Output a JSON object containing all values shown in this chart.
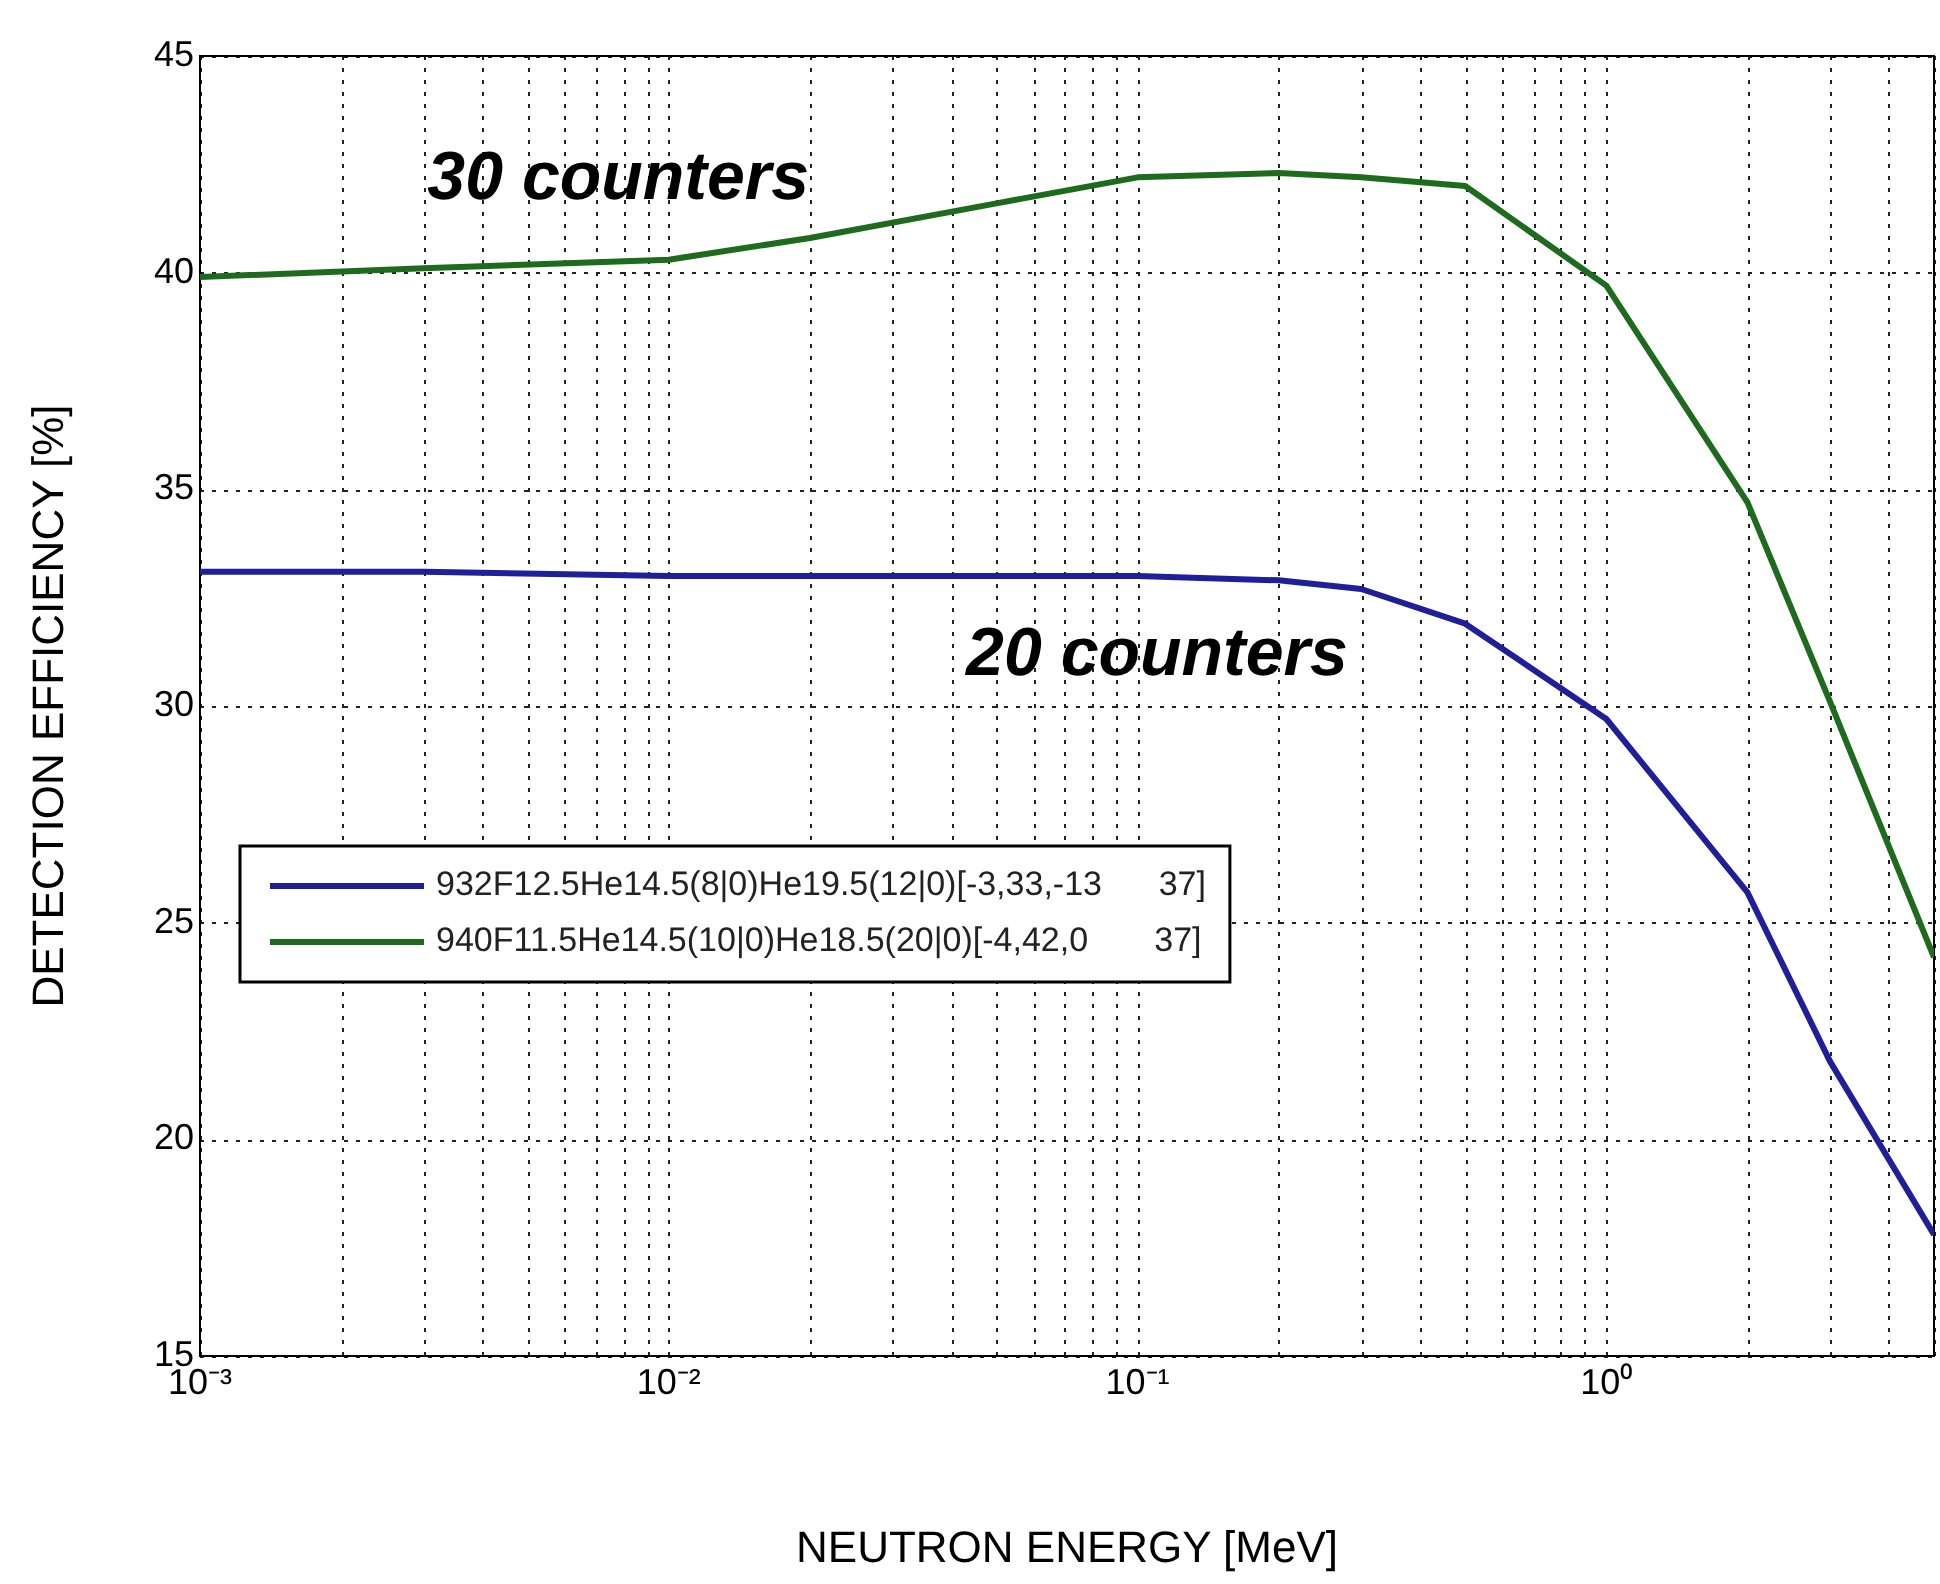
{
  "chart_data": {
    "type": "line",
    "xlabel": "NEUTRON ENERGY [MeV]",
    "ylabel": "DETECTION EFFICIENCY [%]",
    "log": "x",
    "grid": true,
    "legend": "left",
    "line_style": "solid",
    "marker": "none",
    "xlim": [
      0.001,
      5
    ],
    "ylim": [
      15,
      45
    ],
    "xticks": [
      {
        "value": 0.001,
        "label": "10⁻³"
      },
      {
        "value": 0.002,
        "label": null
      },
      {
        "value": 0.003,
        "label": null
      },
      {
        "value": 0.004,
        "label": null
      },
      {
        "value": 0.005,
        "label": null
      },
      {
        "value": 0.006,
        "label": null
      },
      {
        "value": 0.007,
        "label": null
      },
      {
        "value": 0.008,
        "label": null
      },
      {
        "value": 0.009,
        "label": null
      },
      {
        "value": 0.01,
        "label": "10⁻²"
      },
      {
        "value": 0.02,
        "label": null
      },
      {
        "value": 0.03,
        "label": null
      },
      {
        "value": 0.04,
        "label": null
      },
      {
        "value": 0.05,
        "label": null
      },
      {
        "value": 0.06,
        "label": null
      },
      {
        "value": 0.07,
        "label": null
      },
      {
        "value": 0.08,
        "label": null
      },
      {
        "value": 0.09,
        "label": null
      },
      {
        "value": 0.1,
        "label": "10⁻¹"
      },
      {
        "value": 0.2,
        "label": null
      },
      {
        "value": 0.3,
        "label": null
      },
      {
        "value": 0.4,
        "label": null
      },
      {
        "value": 0.5,
        "label": null
      },
      {
        "value": 0.6,
        "label": null
      },
      {
        "value": 0.7,
        "label": null
      },
      {
        "value": 0.8,
        "label": null
      },
      {
        "value": 0.9,
        "label": null
      },
      {
        "value": 1,
        "label": "10⁰"
      },
      {
        "value": 2,
        "label": null
      },
      {
        "value": 3,
        "label": null
      },
      {
        "value": 4,
        "label": null
      },
      {
        "value": 5,
        "label": null
      }
    ],
    "yticks": [
      15,
      20,
      25,
      30,
      35,
      40,
      45
    ],
    "x": [
      0.001,
      0.003,
      0.01,
      0.02,
      0.05,
      0.1,
      0.2,
      0.3,
      0.5,
      1,
      2,
      3,
      5
    ],
    "series": [
      {
        "name": "932F12.5He14.5(8|0)He19.5(12|0)[-3,33,-13      37]",
        "color": "#1f1f9a",
        "values": [
          33.1,
          33.1,
          33.0,
          33.0,
          33.0,
          33.0,
          32.9,
          32.7,
          31.9,
          29.7,
          25.7,
          21.8,
          17.8
        ]
      },
      {
        "name": "940F11.5He14.5(10|0)He18.5(20|0)[-4,42,0       37]",
        "color": "#1e6b1e",
        "values": [
          39.9,
          40.1,
          40.3,
          40.8,
          41.6,
          42.2,
          42.3,
          42.2,
          42.0,
          39.7,
          34.7,
          30.1,
          24.2
        ]
      }
    ],
    "annotations": [
      {
        "text": "30 counters",
        "x": 0.0078,
        "y": 40.2
      },
      {
        "text": "20 counters",
        "x": 0.11,
        "y": 33.0
      }
    ]
  }
}
